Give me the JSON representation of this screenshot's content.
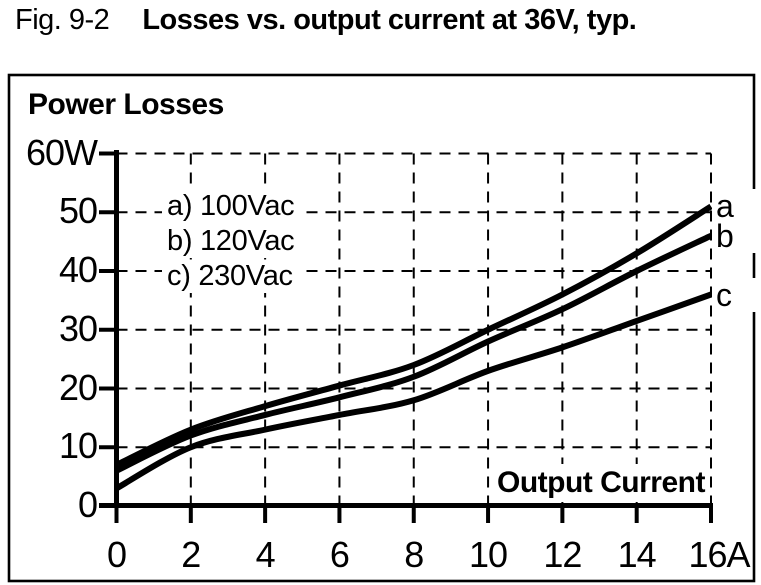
{
  "header": {
    "fig_label": "Fig. 9-2",
    "title": "Losses vs. output current at 36V, typ."
  },
  "chart": {
    "power_losses_label": "Power Losses",
    "output_current_label": "Output Current",
    "legend_lines": [
      "a) 100Vac",
      "b) 120Vac",
      "c) 230Vac"
    ],
    "curve_end_labels": [
      "a",
      "b",
      "c"
    ],
    "line_color": "#000000",
    "background_color": "#ffffff"
  },
  "chart_data": {
    "type": "line",
    "title": "Losses vs. output current at 36V, typ.",
    "xlabel": "Output Current",
    "ylabel": "Power Losses",
    "x": [
      0,
      2,
      4,
      6,
      8,
      10,
      12,
      14,
      16
    ],
    "series": [
      {
        "name": "a) 100Vac",
        "label": "a",
        "values": [
          7,
          13,
          17,
          20.5,
          24,
          30,
          36,
          43,
          51
        ]
      },
      {
        "name": "b) 120Vac",
        "label": "b",
        "values": [
          6,
          12,
          15.5,
          18.5,
          22,
          28,
          33.5,
          40,
          46
        ]
      },
      {
        "name": "c) 230Vac",
        "label": "c",
        "values": [
          3,
          10,
          13,
          15.5,
          18,
          23,
          27,
          31.5,
          36
        ]
      }
    ],
    "xlim": [
      0,
      16
    ],
    "ylim": [
      0,
      60
    ],
    "x_ticks": [
      0,
      2,
      4,
      6,
      8,
      10,
      12,
      14,
      16
    ],
    "y_ticks": [
      0,
      10,
      20,
      30,
      40,
      50,
      60
    ],
    "x_tick_labels": [
      "0",
      "2",
      "4",
      "6",
      "8",
      "10",
      "12",
      "14",
      "16A"
    ],
    "y_tick_labels": [
      "0",
      "10",
      "20",
      "30",
      "40",
      "50",
      "60W"
    ],
    "grid": true,
    "grid_style": "dashed",
    "legend_position": "upper-left"
  }
}
